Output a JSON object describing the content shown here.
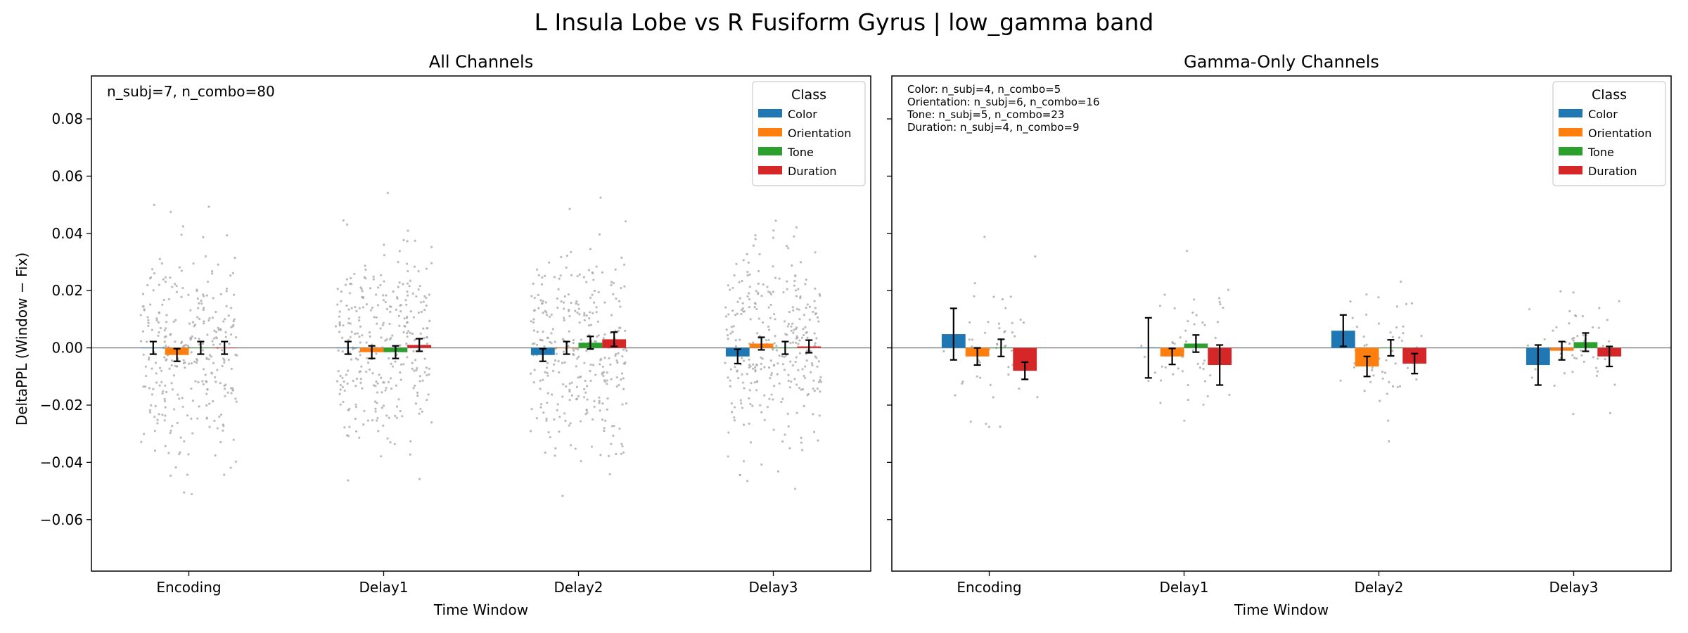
{
  "figure": {
    "suptitle": "L Insula Lobe vs R Fusiform Gyrus  |  low_gamma band"
  },
  "colors": {
    "Color": "#1f77b4",
    "Orientation": "#ff7f0e",
    "Tone": "#2ca02c",
    "Duration": "#d62728",
    "scatter": "#aaaaaa",
    "zero_line": "#808080"
  },
  "chart_data": [
    {
      "type": "bar",
      "title": "All Channels",
      "xlabel": "Time Window",
      "ylabel": "DeltaPPL (Window − Fix)",
      "categories": [
        "Encoding",
        "Delay1",
        "Delay2",
        "Delay3"
      ],
      "ylim": [
        -0.078,
        0.095
      ],
      "yticks": [
        -0.06,
        -0.04,
        -0.02,
        0.0,
        0.02,
        0.04,
        0.06,
        0.08
      ],
      "ytick_labels": [
        "−0.06",
        "−0.04",
        "−0.02",
        "0.00",
        "0.02",
        "0.04",
        "0.06",
        "0.08"
      ],
      "annotation": [
        "n_subj=7, n_combo=80"
      ],
      "legend": {
        "title": "Class",
        "entries": [
          "Color",
          "Orientation",
          "Tone",
          "Duration"
        ],
        "loc": "upper right"
      },
      "series": [
        {
          "name": "Color",
          "values": [
            0.0,
            0.0,
            -0.0025,
            -0.003
          ],
          "errors": [
            0.0022,
            0.0022,
            0.0022,
            0.0025
          ]
        },
        {
          "name": "Orientation",
          "values": [
            -0.0025,
            -0.0015,
            0.0,
            0.0015
          ],
          "errors": [
            0.0022,
            0.0022,
            0.0022,
            0.0022
          ]
        },
        {
          "name": "Tone",
          "values": [
            0.0,
            -0.0015,
            0.0018,
            0.0
          ],
          "errors": [
            0.0022,
            0.0022,
            0.0022,
            0.0022
          ]
        },
        {
          "name": "Duration",
          "values": [
            0.0,
            0.001,
            0.003,
            0.0005
          ],
          "errors": [
            0.0022,
            0.0022,
            0.0025,
            0.0022
          ]
        }
      ],
      "points": {
        "count_per_class": 80,
        "range": [
          -0.063,
          0.072
        ],
        "spread": 0.018
      }
    },
    {
      "type": "bar",
      "title": "Gamma-Only Channels",
      "xlabel": "Time Window",
      "ylabel": "",
      "categories": [
        "Encoding",
        "Delay1",
        "Delay2",
        "Delay3"
      ],
      "ylim": [
        -0.078,
        0.095
      ],
      "yticks": [
        -0.06,
        -0.04,
        -0.02,
        0.0,
        0.02,
        0.04,
        0.06,
        0.08
      ],
      "ytick_labels": [],
      "annotation": [
        "Color: n_subj=4, n_combo=5",
        "Orientation: n_subj=6, n_combo=16",
        "Tone: n_subj=5, n_combo=23",
        "Duration: n_subj=4, n_combo=9"
      ],
      "legend": {
        "title": "Class",
        "entries": [
          "Color",
          "Orientation",
          "Tone",
          "Duration"
        ],
        "loc": "upper right"
      },
      "series": [
        {
          "name": "Color",
          "values": [
            0.0048,
            0.0,
            0.006,
            -0.006
          ],
          "errors": [
            0.009,
            0.0105,
            0.0055,
            0.007
          ]
        },
        {
          "name": "Orientation",
          "values": [
            -0.003,
            -0.003,
            -0.0065,
            -0.001
          ],
          "errors": [
            0.003,
            0.0028,
            0.0035,
            0.0032
          ]
        },
        {
          "name": "Tone",
          "values": [
            0.0,
            0.0015,
            0.0,
            0.002
          ],
          "errors": [
            0.003,
            0.003,
            0.0028,
            0.0032
          ]
        },
        {
          "name": "Duration",
          "values": [
            -0.008,
            -0.006,
            -0.0055,
            -0.003
          ],
          "errors": [
            0.003,
            0.007,
            0.0035,
            0.0035
          ]
        }
      ],
      "points": {
        "count_per_class": [
          5,
          16,
          23,
          9
        ],
        "range": [
          -0.037,
          0.045
        ],
        "spread": 0.011
      }
    }
  ]
}
